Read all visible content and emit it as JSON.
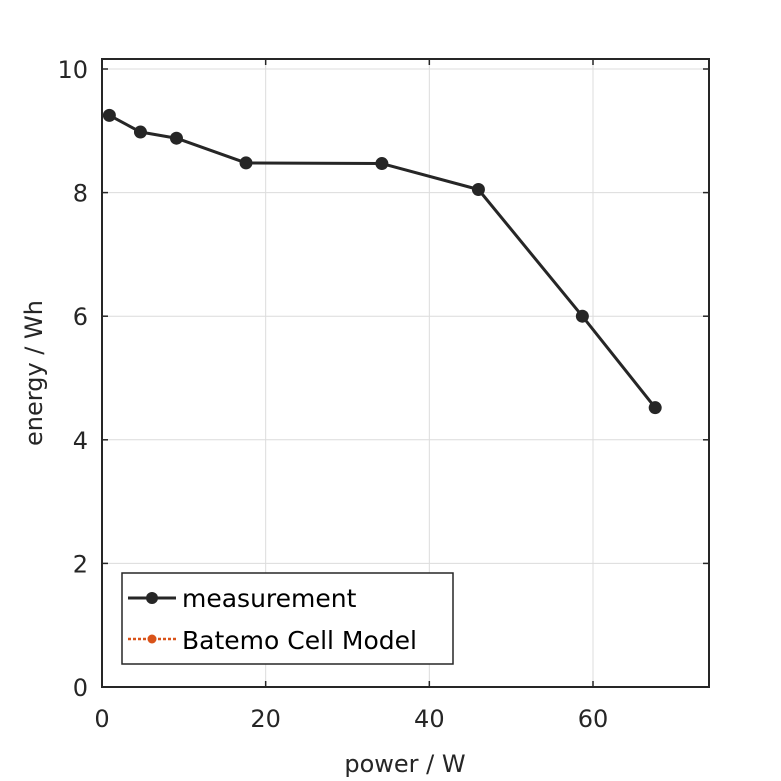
{
  "chart_data": {
    "type": "line",
    "title": "",
    "xlabel": "power / W",
    "ylabel": "energy / Wh",
    "xlim": [
      0,
      74
    ],
    "ylim": [
      0,
      10
    ],
    "xticks": [
      0,
      20,
      40,
      60
    ],
    "yticks": [
      0,
      2,
      4,
      6,
      8,
      10
    ],
    "xtick_labels": [
      "0",
      "20",
      "40",
      "60"
    ],
    "ytick_labels": [
      "0",
      "2",
      "4",
      "6",
      "8",
      "10"
    ],
    "grid": true,
    "legend_position": "bottom-left",
    "series": [
      {
        "name": "measurement",
        "color": "#262626",
        "style": "solid",
        "marker": "circle",
        "x": [
          0.9,
          4.7,
          9.1,
          17.6,
          34.2,
          46.0,
          58.7,
          67.6
        ],
        "y": [
          9.25,
          8.98,
          8.88,
          8.48,
          8.47,
          8.05,
          6.0,
          4.52
        ]
      },
      {
        "name": "Batemo Cell Model",
        "color": "#d95319",
        "style": "dotted",
        "marker": "circle",
        "x": [],
        "y": []
      }
    ]
  }
}
